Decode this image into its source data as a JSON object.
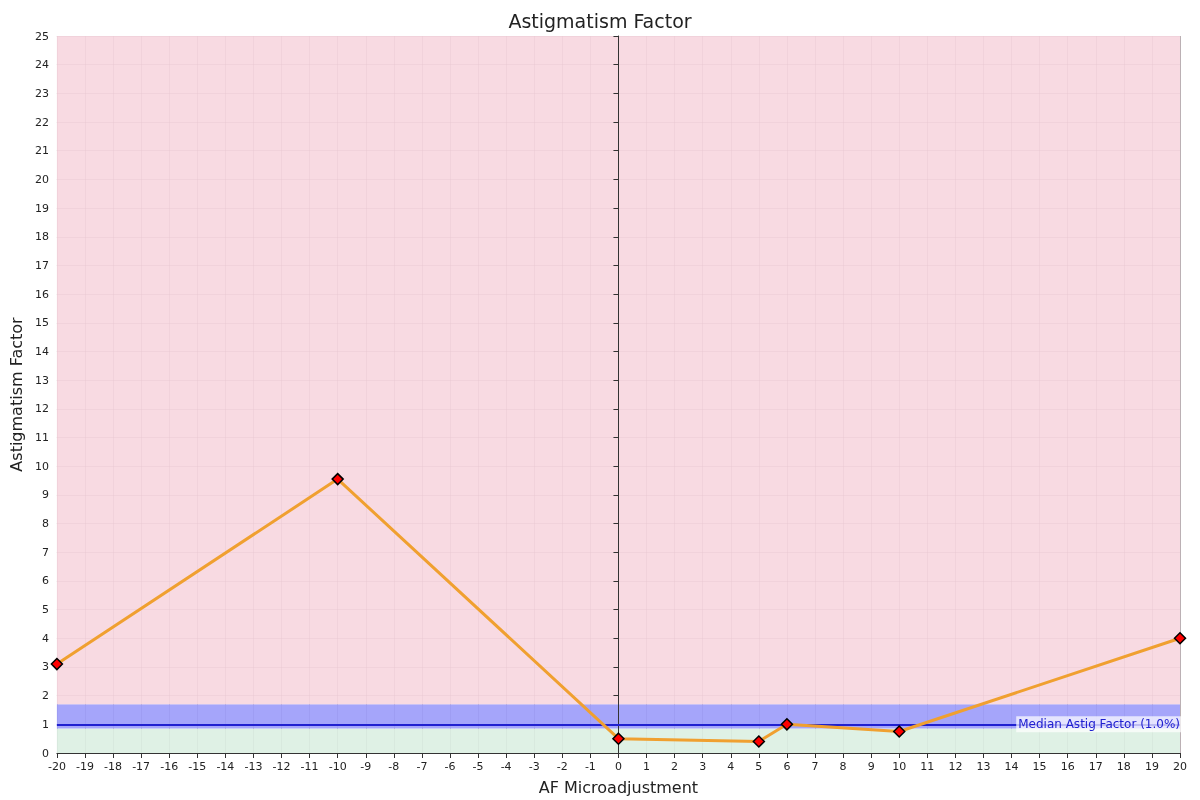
{
  "chart_data": {
    "type": "line",
    "title": "Astigmatism Factor",
    "xlabel": "AF Microadjustment",
    "ylabel": "Astigmatism Factor",
    "x": [
      -20,
      -10,
      0,
      5,
      6,
      10,
      20
    ],
    "series": [
      {
        "color": "#f0a030",
        "values": [
          3.1,
          9.55,
          0.5,
          0.4,
          1.0,
          0.75,
          4.0
        ]
      }
    ],
    "xlim": [
      -20,
      20
    ],
    "xticks": [
      -20,
      -19,
      -18,
      -17,
      -16,
      -15,
      -14,
      -13,
      -12,
      -11,
      -10,
      -9,
      -8,
      -7,
      -6,
      -5,
      -4,
      -3,
      -2,
      -1,
      0,
      1,
      2,
      3,
      4,
      5,
      6,
      7,
      8,
      9,
      10,
      11,
      12,
      13,
      14,
      15,
      16,
      17,
      18,
      19,
      20
    ],
    "ylim": [
      0,
      25
    ],
    "yticks": [
      0,
      1,
      2,
      3,
      4,
      5,
      6,
      7,
      8,
      9,
      10,
      11,
      12,
      13,
      14,
      15,
      16,
      17,
      18,
      19,
      20,
      21,
      22,
      23,
      24,
      25
    ],
    "grid": true,
    "marker": "diamond",
    "line_style": "solid",
    "bands": [
      {
        "axis": "y",
        "from": 0,
        "to": 0.85,
        "color": "#dcefe2"
      },
      {
        "axis": "y",
        "from": 0.85,
        "to": 1.7,
        "color": "#9b9bfa"
      },
      {
        "axis": "y",
        "from": 1.7,
        "to": 25,
        "color": "#f7d6df"
      }
    ],
    "ref_lines": [
      {
        "axis": "y",
        "value": 1.0,
        "label": "Median Astig Factor (1.0%)",
        "color": "#2020d0"
      }
    ]
  }
}
